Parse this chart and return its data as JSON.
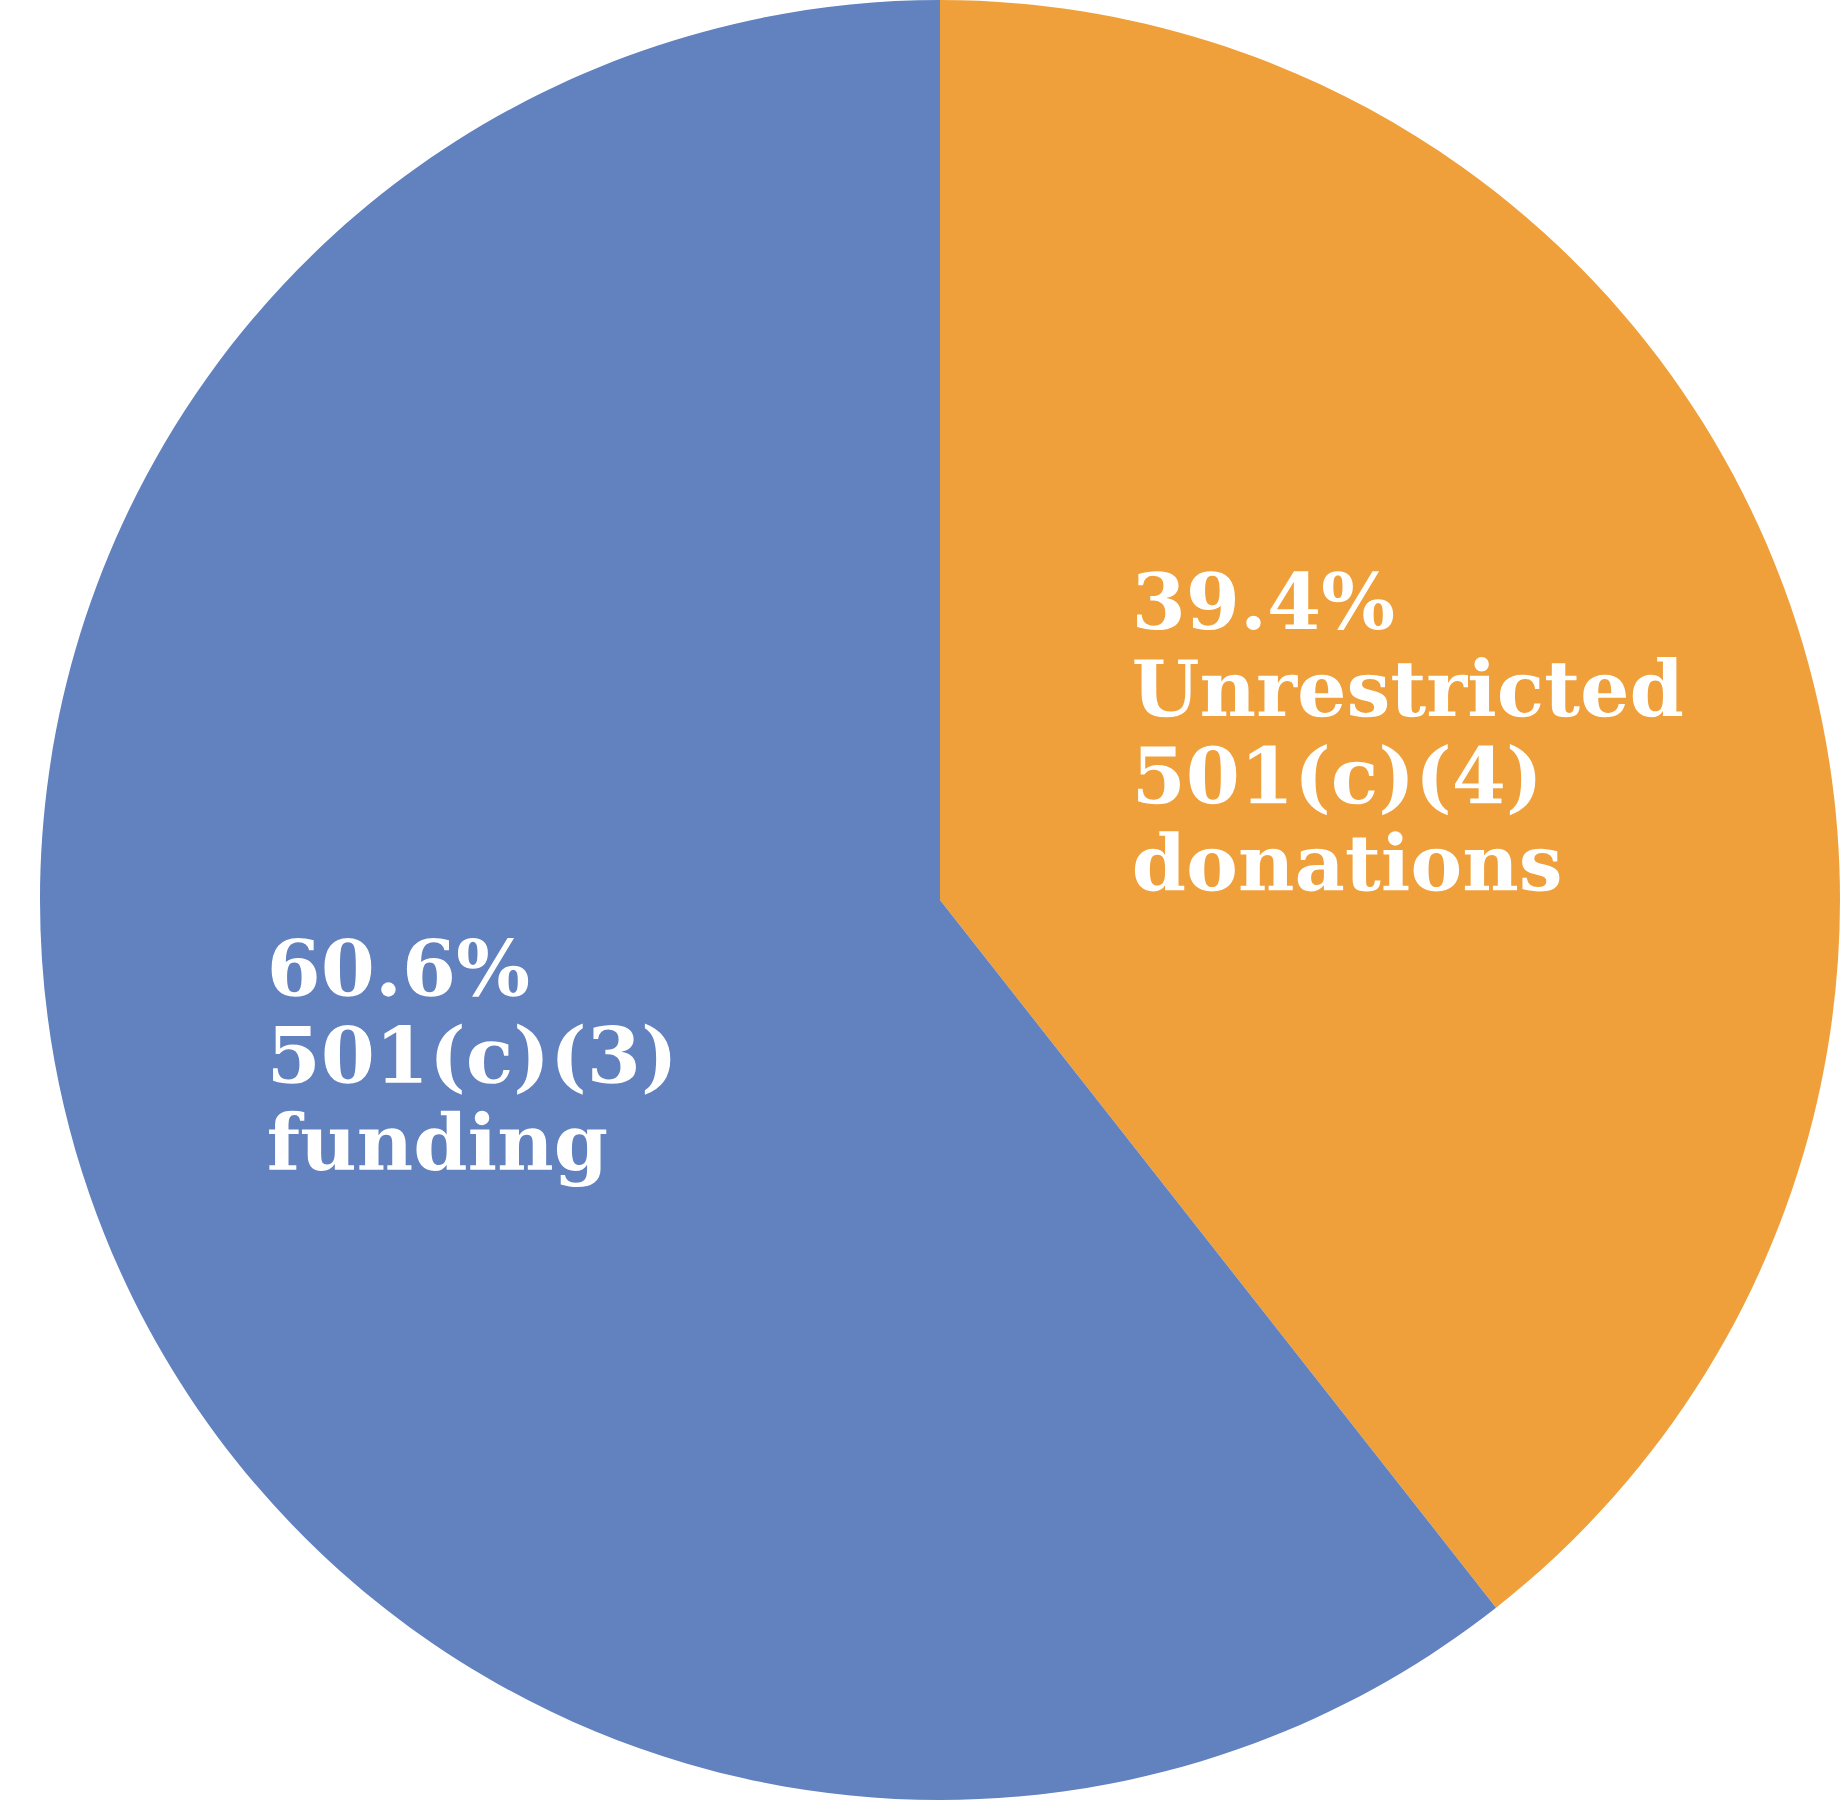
{
  "chart_data": {
    "type": "pie",
    "categories": [
      "Unrestricted 501(c)(4) donations",
      "501(c)(3) funding"
    ],
    "values": [
      39.4,
      60.6
    ],
    "value_labels": [
      "39.4%",
      "60.6%"
    ],
    "colors": [
      "#f0a03a",
      "#6181bf"
    ]
  }
}
